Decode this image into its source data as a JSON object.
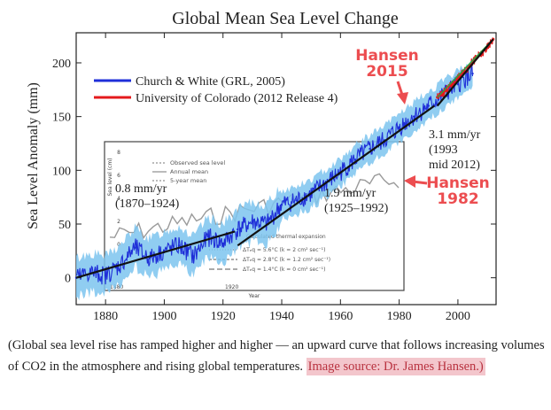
{
  "chart_data": {
    "type": "line",
    "title": "Global Mean Sea Level Change",
    "xlabel": "",
    "ylabel": "Sea Level Anomaly (mm)",
    "xlim": [
      1870,
      2013
    ],
    "ylim": [
      -25,
      228
    ],
    "x_ticks": [
      "1880",
      "1900",
      "1920",
      "1940",
      "1960",
      "1980",
      "2000"
    ],
    "y_ticks": [
      "0",
      "50",
      "100",
      "150",
      "200"
    ],
    "legend_position": "top-left",
    "series": [
      {
        "name": "Church & White (GRL, 2005)",
        "color": "#1f2fd8",
        "x": [
          1870,
          1875,
          1880,
          1885,
          1890,
          1895,
          1900,
          1905,
          1910,
          1915,
          1920,
          1925,
          1930,
          1935,
          1940,
          1945,
          1950,
          1955,
          1960,
          1965,
          1970,
          1975,
          1980,
          1985,
          1990,
          1995,
          2000,
          2005
        ],
        "y": [
          0,
          5,
          2,
          12,
          28,
          18,
          25,
          30,
          20,
          38,
          32,
          45,
          52,
          50,
          68,
          72,
          78,
          88,
          98,
          110,
          120,
          128,
          140,
          150,
          160,
          170,
          180,
          190
        ]
      },
      {
        "name": "University of Colorado (2012 Release 4)",
        "color": "#e41a1c",
        "x": [
          1993,
          1995,
          1998,
          2000,
          2002,
          2004,
          2006,
          2008,
          2010,
          2012
        ],
        "y": [
          168,
          172,
          180,
          186,
          192,
          198,
          204,
          208,
          214,
          222
        ]
      }
    ],
    "trend_lines": [
      {
        "label": "0.8 mm/yr\n(1870–1924)",
        "x": [
          1870,
          1924
        ],
        "y": [
          0,
          43
        ]
      },
      {
        "label": "1.9 mm/yr\n(1925–1992)",
        "x": [
          1925,
          1992
        ],
        "y": [
          30,
          160
        ]
      },
      {
        "label": "3.1 mm/yr\n(1993\nmid 2012)",
        "x": [
          1993,
          2012
        ],
        "y": [
          160,
          222
        ]
      }
    ],
    "annotations": [
      {
        "text": "Hansen\n2015",
        "color": "#ec4d50"
      },
      {
        "text": "Hansen\n1982",
        "color": "#ec4d50"
      }
    ],
    "inset": {
      "legend": [
        "Observed sea level",
        "Annual mean",
        "5-year mean"
      ],
      "ylabel": "Sea level (cm)",
      "y_ticks": [
        "8",
        "6",
        "4",
        "2",
        "0",
        "-2"
      ],
      "x_ticks": [
        "1880",
        "1920"
      ],
      "xlabel": "Year",
      "thermal_title": "Calculated thermal expansion",
      "thermal_rows": [
        "ΔTₑq = 5.6°C   (k = 2 cm² sec⁻¹)",
        "ΔTₑq = 2.8°C   (k = 1.2 cm² sec⁻¹)",
        "ΔTₑq = 1.4°C   (k = 0 cm² sec⁻¹)"
      ]
    }
  },
  "caption": {
    "text": "(Global sea level rise has ramped higher and higher — an upward curve that follows increasing volumes of CO2 in the atmosphere and rising global temperatures. ",
    "source": "Image source: Dr. James Hansen.)"
  }
}
